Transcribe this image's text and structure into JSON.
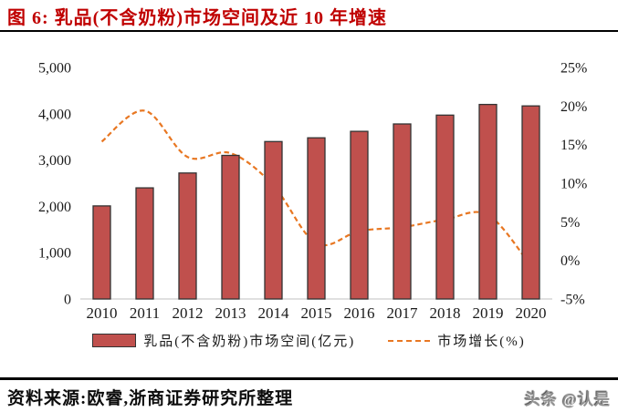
{
  "header": {
    "title": "图 6: 乳品(不含奶粉)市场空间及近 10 年增速",
    "title_color": "#c00000"
  },
  "footer": {
    "source": "资料来源:欧睿,浙商证券研究所整理",
    "watermark": "头条 @认是"
  },
  "chart_data": {
    "type": "bar",
    "combo": true,
    "title": "乳品(不含奶粉)市场空间及近 10 年增速",
    "xlabel": "",
    "ylabel_left": "",
    "ylabel_right": "",
    "grid": false,
    "legend_position": "bottom",
    "axis_line_color": "#d6d6d6",
    "categories": [
      "2010",
      "2011",
      "2012",
      "2013",
      "2014",
      "2015",
      "2016",
      "2017",
      "2018",
      "2019",
      "2020"
    ],
    "series": [
      {
        "name": "乳品(不含奶粉)市场空间(亿元)",
        "type": "bar",
        "axis": "left",
        "color": "#c0504d",
        "border_color": "#333333",
        "values": [
          2010,
          2400,
          2720,
          3100,
          3400,
          3480,
          3620,
          3780,
          3970,
          4200,
          4170
        ]
      },
      {
        "name": "市场增长(%)",
        "type": "line",
        "axis": "right",
        "color": "#e87722",
        "dashed": true,
        "values": [
          15.4,
          19.4,
          13.4,
          13.9,
          9.7,
          2.2,
          3.8,
          4.3,
          5.3,
          5.9,
          -0.7
        ]
      }
    ],
    "left_axis": {
      "min": 0,
      "max": 5000,
      "tick_values": [
        0,
        1000,
        2000,
        3000,
        4000,
        5000
      ],
      "tick_labels": [
        "0",
        "1,000",
        "2,000",
        "3,000",
        "4,000",
        "5,000"
      ]
    },
    "right_axis": {
      "min": -5,
      "max": 25,
      "tick_values": [
        -5,
        0,
        5,
        10,
        15,
        20,
        25
      ],
      "tick_labels": [
        "-5%",
        "0%",
        "5%",
        "10%",
        "15%",
        "20%",
        "25%"
      ]
    }
  }
}
